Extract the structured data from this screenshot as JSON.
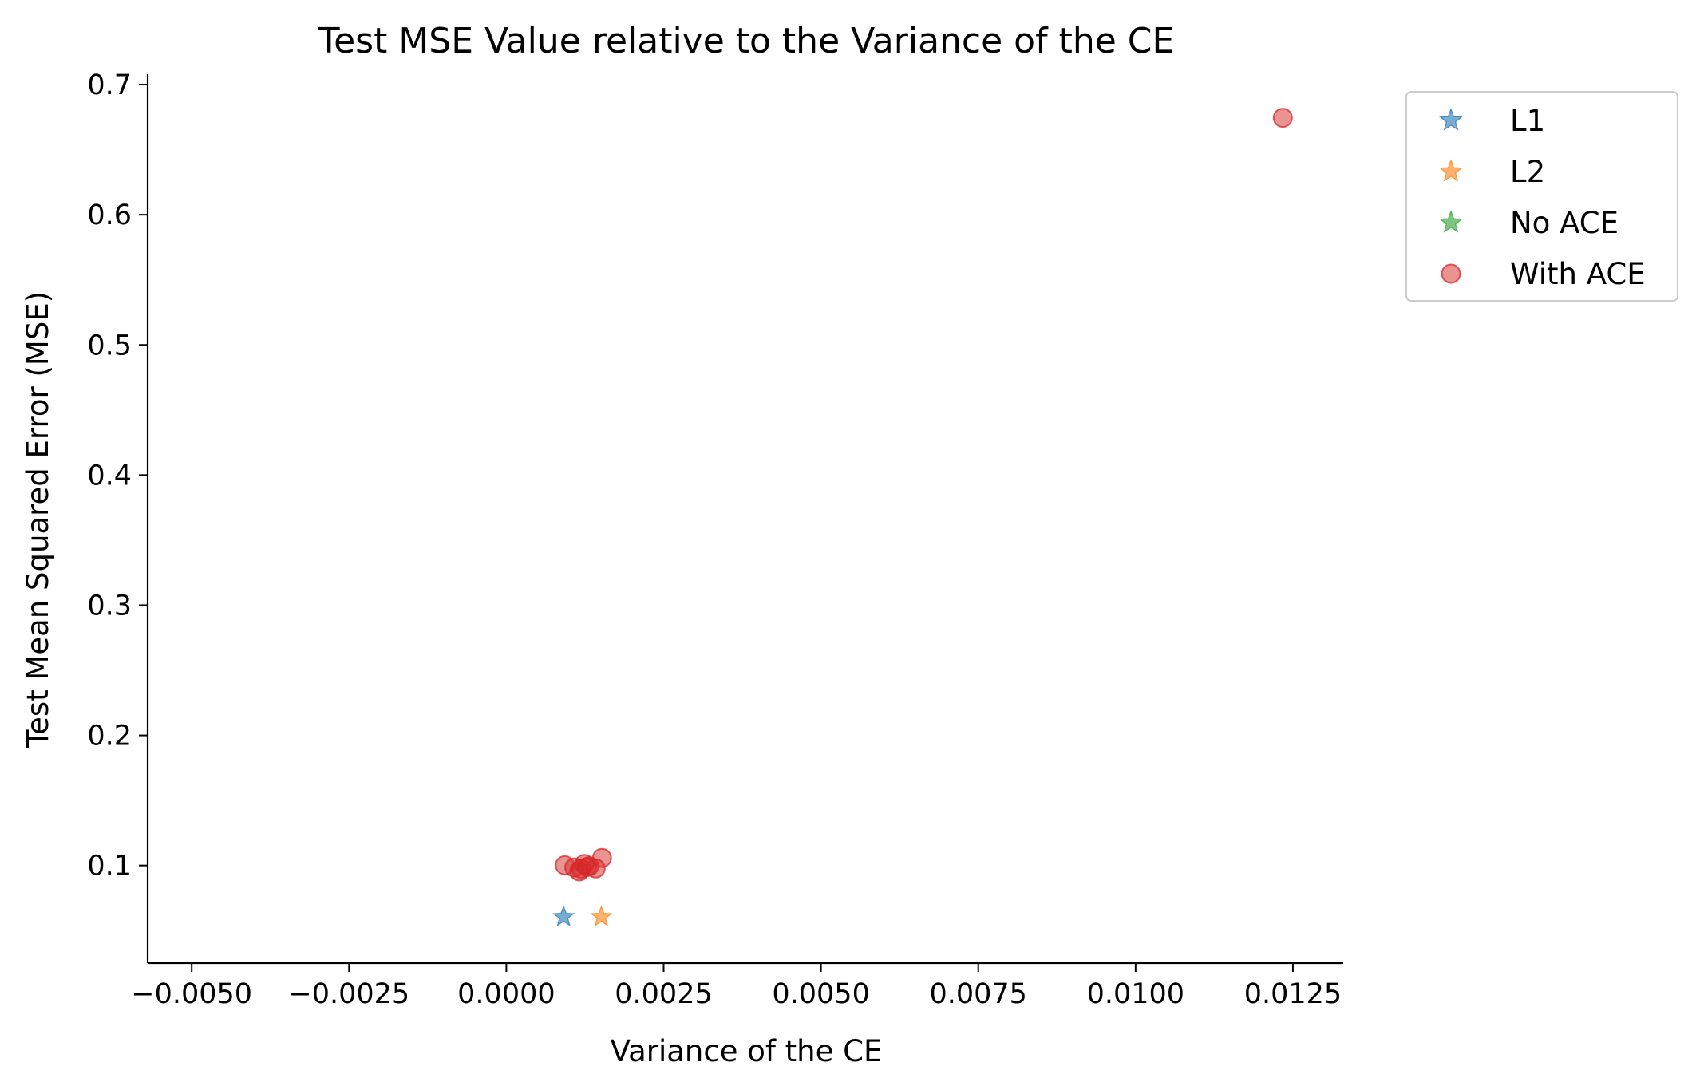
{
  "chart_data": {
    "type": "scatter",
    "title": "Test MSE Value relative to the Variance of the CE",
    "xlabel": "Variance of the CE",
    "ylabel": "Test Mean Squared Error (MSE)",
    "xlim": [
      -0.0057,
      0.0133
    ],
    "ylim": [
      0.025,
      0.708
    ],
    "xticks": [
      -0.005,
      -0.0025,
      0.0,
      0.0025,
      0.005,
      0.0075,
      0.01,
      0.0125
    ],
    "xtick_labels": [
      "−0.0050",
      "−0.0025",
      "0.0000",
      "0.0025",
      "0.0050",
      "0.0075",
      "0.0100",
      "0.0125"
    ],
    "yticks": [
      0.1,
      0.2,
      0.3,
      0.4,
      0.5,
      0.6,
      0.7
    ],
    "ytick_labels": [
      "0.1",
      "0.2",
      "0.3",
      "0.4",
      "0.5",
      "0.6",
      "0.7"
    ],
    "grid": false,
    "legend_position": "upper right, outside plot",
    "series": [
      {
        "name": "L1",
        "marker": "star",
        "color": "#1f77b4",
        "points": [
          [
            0.00091,
            0.0605
          ]
        ]
      },
      {
        "name": "L2",
        "marker": "star",
        "color": "#ff7f0e",
        "points": [
          [
            0.00151,
            0.0605
          ]
        ]
      },
      {
        "name": "No ACE",
        "marker": "star",
        "color": "#2ca02c",
        "points": []
      },
      {
        "name": "With ACE",
        "marker": "circle",
        "color": "#d62728",
        "points": [
          [
            0.00093,
            0.1002
          ],
          [
            0.00108,
            0.0985
          ],
          [
            0.00116,
            0.0955
          ],
          [
            0.00119,
            0.0975
          ],
          [
            0.00124,
            0.1012
          ],
          [
            0.00128,
            0.0988
          ],
          [
            0.00132,
            0.0995
          ],
          [
            0.00142,
            0.0978
          ],
          [
            0.00152,
            0.1058
          ],
          [
            0.01234,
            0.6745
          ]
        ]
      }
    ]
  }
}
